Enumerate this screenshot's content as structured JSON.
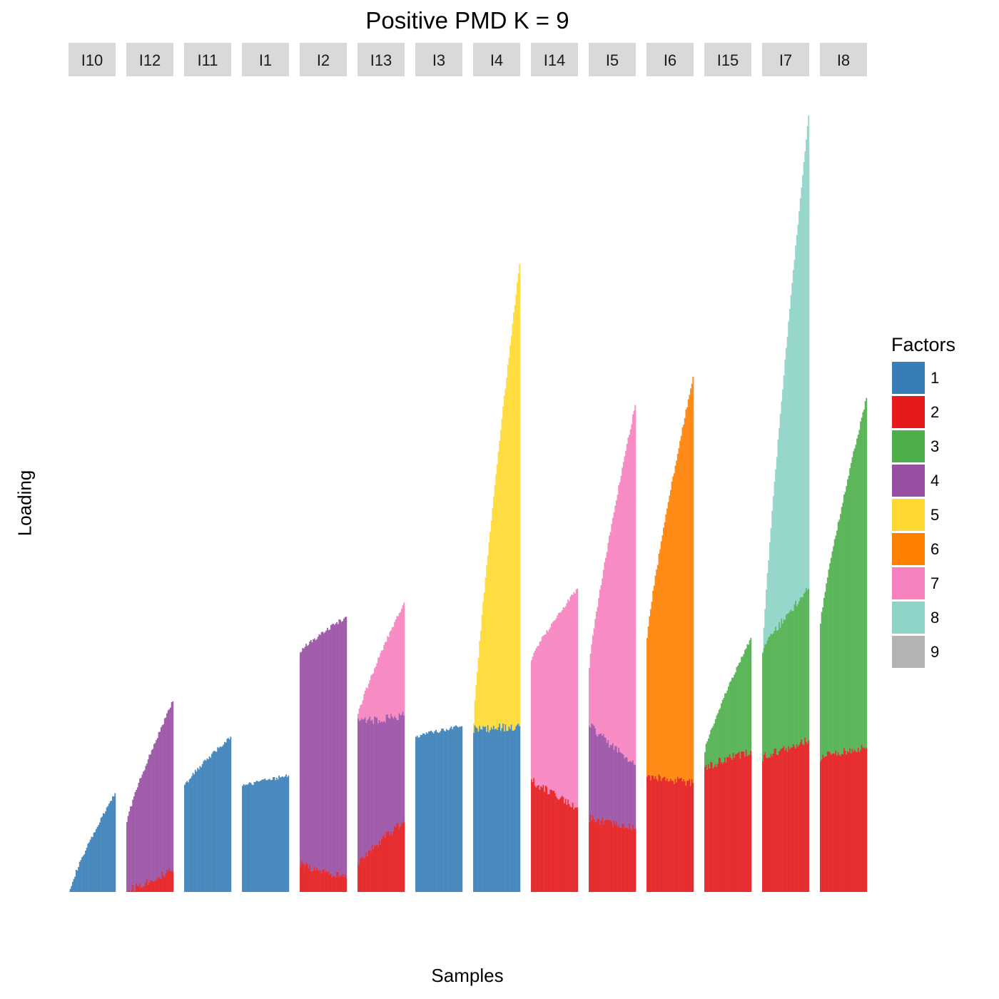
{
  "chart_data": {
    "type": "bar",
    "stacked": true,
    "title": "Positive PMD K = 9",
    "xlabel": "Samples",
    "ylabel": "Loading",
    "legend": {
      "title": "Factors",
      "position": "right"
    },
    "factors": [
      {
        "name": "1",
        "color": "#377eb8"
      },
      {
        "name": "2",
        "color": "#e41a1c"
      },
      {
        "name": "3",
        "color": "#4daf4a"
      },
      {
        "name": "4",
        "color": "#984ea3"
      },
      {
        "name": "5",
        "color": "#ffd92f"
      },
      {
        "name": "6",
        "color": "#ff7f00"
      },
      {
        "name": "7",
        "color": "#f781bf"
      },
      {
        "name": "8",
        "color": "#8dd3c7"
      },
      {
        "name": "9",
        "color": "#b3b3b3"
      }
    ],
    "ylim": [
      0,
      1.1
    ],
    "grid": false,
    "facets": [
      {
        "label": "I10",
        "segments": [
          {
            "factor": "1",
            "start": 0.0,
            "end": 0.14
          }
        ]
      },
      {
        "label": "I12",
        "segments": [
          {
            "factor": "2",
            "start": 0.0,
            "end": 0.03
          },
          {
            "factor": "4",
            "start": 0.1,
            "end": 0.27
          }
        ]
      },
      {
        "label": "I11",
        "segments": [
          {
            "factor": "1",
            "start": 0.15,
            "end": 0.22
          }
        ]
      },
      {
        "label": "I1",
        "segments": [
          {
            "factor": "1",
            "start": 0.15,
            "end": 0.165
          }
        ]
      },
      {
        "label": "I2",
        "segments": [
          {
            "factor": "2",
            "start": 0.04,
            "end": 0.02
          },
          {
            "factor": "4",
            "start": 0.34,
            "end": 0.39
          }
        ]
      },
      {
        "label": "I13",
        "segments": [
          {
            "factor": "2",
            "start": 0.04,
            "end": 0.1
          },
          {
            "factor": "4",
            "start": 0.24,
            "end": 0.25
          },
          {
            "factor": "7",
            "start": 0.25,
            "end": 0.41
          }
        ]
      },
      {
        "label": "I3",
        "segments": [
          {
            "factor": "1",
            "start": 0.22,
            "end": 0.235
          }
        ]
      },
      {
        "label": "I4",
        "segments": [
          {
            "factor": "1",
            "start": 0.23,
            "end": 0.235
          },
          {
            "factor": "5",
            "start": 0.24,
            "end": 0.89
          }
        ]
      },
      {
        "label": "I14",
        "segments": [
          {
            "factor": "2",
            "start": 0.16,
            "end": 0.12
          },
          {
            "factor": "7",
            "start": 0.33,
            "end": 0.43
          }
        ]
      },
      {
        "label": "I5",
        "segments": [
          {
            "factor": "2",
            "start": 0.105,
            "end": 0.09
          },
          {
            "factor": "4",
            "start": 0.24,
            "end": 0.18
          },
          {
            "factor": "7",
            "start": 0.32,
            "end": 0.69
          }
        ]
      },
      {
        "label": "I6",
        "segments": [
          {
            "factor": "2",
            "start": 0.165,
            "end": 0.155
          },
          {
            "factor": "6",
            "start": 0.36,
            "end": 0.73
          }
        ]
      },
      {
        "label": "I15",
        "segments": [
          {
            "factor": "2",
            "start": 0.175,
            "end": 0.2
          },
          {
            "factor": "3",
            "start": 0.2,
            "end": 0.36
          }
        ]
      },
      {
        "label": "I7",
        "segments": [
          {
            "factor": "2",
            "start": 0.19,
            "end": 0.215
          },
          {
            "factor": "3",
            "start": 0.34,
            "end": 0.43
          },
          {
            "factor": "8",
            "start": 0.34,
            "end": 1.1
          }
        ]
      },
      {
        "label": "I8",
        "segments": [
          {
            "factor": "2",
            "start": 0.19,
            "end": 0.205
          },
          {
            "factor": "3",
            "start": 0.38,
            "end": 0.7
          }
        ]
      }
    ]
  }
}
